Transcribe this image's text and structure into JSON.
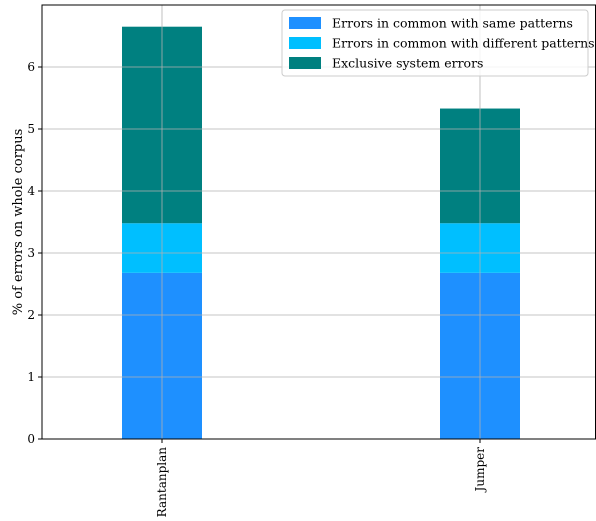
{
  "chart_data": {
    "type": "bar",
    "stacked": true,
    "categories": [
      "Rantanplan",
      "Jumper"
    ],
    "series": [
      {
        "name": "Errors in common with same patterns",
        "values": [
          2.68,
          2.68
        ],
        "color": "#1e90ff"
      },
      {
        "name": "Errors in common with different patterns",
        "values": [
          0.8,
          0.8
        ],
        "color": "#00bfff"
      },
      {
        "name": "Exclusive system errors",
        "values": [
          3.17,
          1.85
        ],
        "color": "#008080"
      }
    ],
    "title": "",
    "xlabel": "",
    "ylabel": "% of errors on whole corpus",
    "ylim": [
      0,
      7
    ],
    "yticks": [
      "0",
      "1",
      "2",
      "3",
      "4",
      "5",
      "6"
    ],
    "grid": true,
    "legend_position": "top-right"
  }
}
